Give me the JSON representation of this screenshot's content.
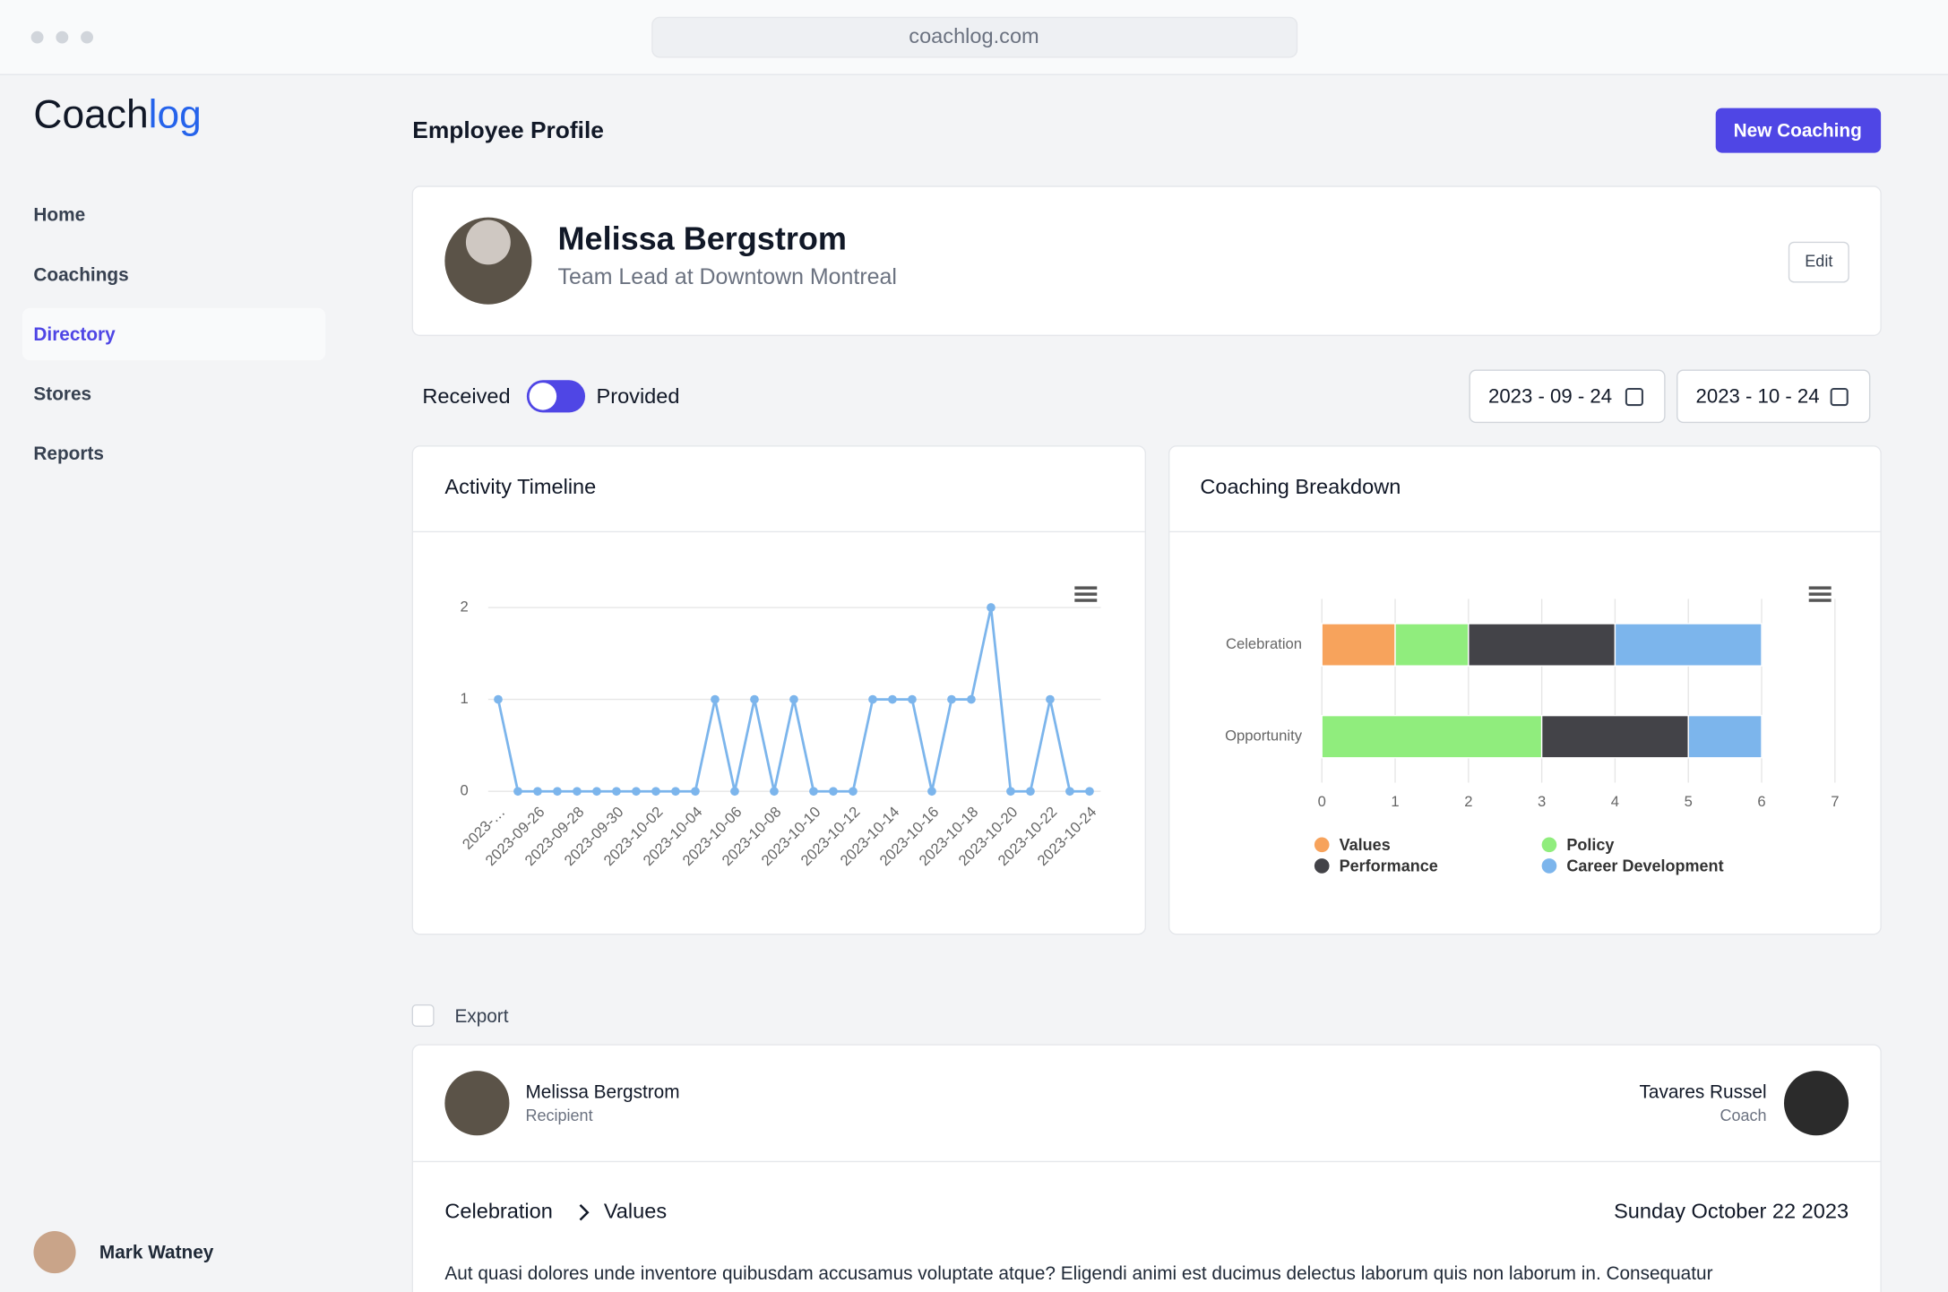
{
  "browser": {
    "url": "coachlog.com"
  },
  "sidebar": {
    "logo": [
      "Coach",
      "log"
    ],
    "nav": [
      "Home",
      "Coachings",
      "Directory",
      "Stores",
      "Reports"
    ],
    "user": "Mark Watney"
  },
  "header": {
    "title": "Employee Profile",
    "button": "New Coaching"
  },
  "profile": {
    "name": "Melissa Bergstrom",
    "subtitle": "Team Lead at Downtown Montreal",
    "edit": "Edit"
  },
  "filters": {
    "left": "Received",
    "right": "Provided",
    "start": "2023 - 09 - 24",
    "end": "2023 - 10 - 24"
  },
  "export": "Export",
  "coaching": {
    "recipient": {
      "name": "Melissa Bergstrom",
      "role": "Recipient"
    },
    "coach": {
      "name": "Tavares Russel",
      "role": "Coach"
    },
    "category": "Celebration",
    "subcategory": "Values",
    "date": "Sunday October 22 2023",
    "text": "Aut quasi dolores unde inventore quibusdam accusamus voluptate atque? Eligendi animi est ducimus delectus laborum quis non laborum in. Consequatur"
  },
  "chart_data": [
    {
      "type": "line",
      "title": "Activity Timeline",
      "color": "#7cb5ec",
      "grid": true,
      "categories": [
        "2023-…",
        null,
        "2023-09-26",
        null,
        "2023-09-28",
        null,
        "2023-09-30",
        null,
        "2023-10-02",
        null,
        "2023-10-04",
        null,
        "2023-10-06",
        null,
        "2023-10-08",
        null,
        "2023-10-10",
        null,
        "2023-10-12",
        null,
        "2023-10-14",
        null,
        "2023-10-16",
        null,
        "2023-10-18",
        null,
        "2023-10-20",
        null,
        "2023-10-22",
        null,
        "2023-10-24"
      ],
      "values": [
        1,
        0,
        0,
        0,
        0,
        0,
        0,
        0,
        0,
        0,
        0,
        1,
        0,
        1,
        0,
        1,
        0,
        0,
        0,
        1,
        1,
        1,
        0,
        1,
        1,
        2,
        0,
        0,
        1,
        0,
        0
      ],
      "ylim": [
        0,
        2
      ],
      "yticks": [
        0,
        1,
        2
      ]
    },
    {
      "type": "bar",
      "orientation": "horizontal",
      "stacked": true,
      "title": "Coaching Breakdown",
      "grid": true,
      "legend": "bottom",
      "categories": [
        "Celebration",
        "Opportunity"
      ],
      "series": [
        {
          "name": "Values",
          "color": "#f7a35c",
          "values": [
            1,
            0
          ]
        },
        {
          "name": "Policy",
          "color": "#90ed7d",
          "values": [
            1,
            3
          ]
        },
        {
          "name": "Performance",
          "color": "#434348",
          "values": [
            2,
            2
          ]
        },
        {
          "name": "Career Development",
          "color": "#7cb5ec",
          "values": [
            2,
            1
          ]
        }
      ],
      "xlim": [
        0,
        7
      ],
      "xticks": [
        0,
        1,
        2,
        3,
        4,
        5,
        6,
        7
      ]
    }
  ]
}
